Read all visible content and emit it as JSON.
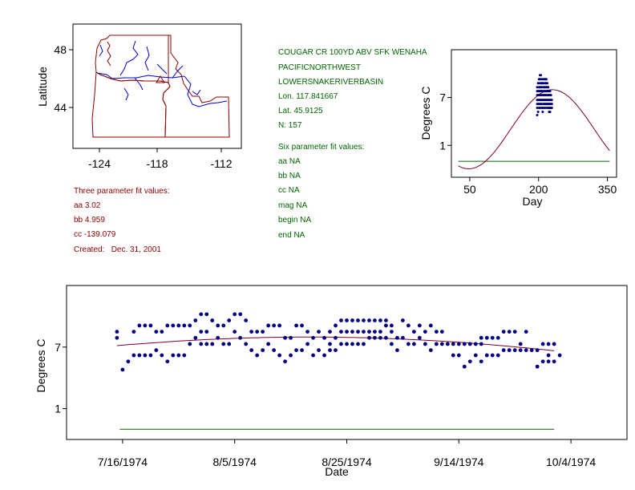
{
  "colors": {
    "point": "#000080",
    "fit": "#800020",
    "baseline": "#006400",
    "site_text": "#006400",
    "three_param_text": "#8b0000",
    "map_states": "#8b0000",
    "map_rivers": "#0000cd"
  },
  "map": {
    "ylabel": "Latitude",
    "yticks": [
      "48",
      "44"
    ],
    "xticks": [
      "-124",
      "-118",
      "-112"
    ],
    "marker_icon": "triangle-site-marker"
  },
  "three_param": {
    "heading": "Three parameter fit values:",
    "aa": "aa 3.02",
    "bb": "bb 4.959",
    "cc": "cc -139.079",
    "created": "Created:   Dec. 31, 2001"
  },
  "site": {
    "name": "COUGAR CR 100YD ABV SFK WENAHA",
    "region": "PACIFICNORTHWEST",
    "basin": "LOWERSNAKERIVERBASIN",
    "lon": "Lon. 117.841667",
    "lat": "Lat. 45.9125",
    "n": "N: 157"
  },
  "six_param": {
    "heading": "Six parameter fit values:",
    "aa": "aa NA",
    "bb": "bb NA",
    "cc": "cc NA",
    "mag": "mag NA",
    "begin": "begin NA",
    "end": "end NA"
  },
  "chart_data": [
    {
      "type": "scatter",
      "name": "seasonal",
      "xlabel": "Day",
      "ylabel": "Degrees C",
      "xlim": [
        10,
        370
      ],
      "ylim": [
        -3,
        13
      ],
      "xticks": [
        50,
        200,
        350
      ],
      "yticks": [
        1,
        7
      ],
      "xtick_labels": [
        "50",
        "200",
        "350"
      ],
      "ytick_labels": [
        "1",
        "7"
      ],
      "fit": {
        "aa": 3.02,
        "bb": 4.959,
        "cc": -139.079,
        "x_start": 25,
        "x_end": 355
      },
      "baseline": {
        "y": -1,
        "x_start": 25,
        "x_end": 355
      },
      "points_by_day": [
        {
          "day": 197,
          "temps": [
            4.8,
            5.7,
            6.2,
            6.7,
            7.3,
            7.8,
            8.3
          ]
        },
        {
          "day": 199,
          "temps": [
            5.2,
            6.2,
            6.7,
            7.3,
            7.8,
            8.8
          ]
        },
        {
          "day": 201,
          "temps": [
            5.7,
            6.2,
            6.7,
            7.3,
            7.8,
            8.3,
            8.8,
            9.3
          ]
        },
        {
          "day": 203,
          "temps": [
            5.7,
            6.2,
            6.7,
            7.3,
            7.8,
            8.3,
            9.3,
            9.8
          ]
        },
        {
          "day": 205,
          "temps": [
            6.2,
            6.7,
            7.3,
            7.8,
            8.3,
            8.8,
            9.8
          ]
        },
        {
          "day": 207,
          "temps": [
            5.7,
            6.2,
            6.7,
            7.3,
            7.8,
            8.3,
            8.8,
            9.3
          ]
        },
        {
          "day": 209,
          "temps": [
            5.2,
            5.7,
            6.7,
            7.3,
            7.8,
            8.8,
            9.3
          ]
        },
        {
          "day": 211,
          "temps": [
            6.2,
            6.7,
            7.3,
            7.8,
            8.3,
            8.8
          ]
        },
        {
          "day": 213,
          "temps": [
            5.7,
            6.2,
            6.7,
            7.3,
            7.8,
            8.3,
            9.3
          ]
        },
        {
          "day": 215,
          "temps": [
            6.2,
            6.7,
            7.3,
            7.8,
            8.3,
            8.8,
            9.3
          ]
        },
        {
          "day": 217,
          "temps": [
            5.7,
            6.2,
            6.7,
            7.3,
            7.8,
            8.3,
            8.8,
            9.3
          ]
        },
        {
          "day": 219,
          "temps": [
            6.2,
            6.7,
            7.3,
            7.8,
            8.3,
            8.8
          ]
        },
        {
          "day": 221,
          "temps": [
            5.7,
            6.2,
            6.7,
            7.3,
            7.8,
            8.3
          ]
        },
        {
          "day": 223,
          "temps": [
            5.2,
            5.7,
            6.2,
            6.7,
            7.3,
            7.8
          ]
        },
        {
          "day": 225,
          "temps": [
            5.2,
            5.7,
            6.2,
            6.7,
            7.3,
            7.8
          ]
        },
        {
          "day": 227,
          "temps": [
            5.7,
            6.2,
            6.7,
            7.3
          ]
        },
        {
          "day": 229,
          "temps": [
            5.7,
            6.2,
            6.7
          ]
        }
      ]
    },
    {
      "type": "scatter",
      "name": "timeseries",
      "xlabel": "Date",
      "ylabel": "Degrees C",
      "x_start_date": "1974-07-16",
      "xlim": [
        -10,
        90
      ],
      "ylim": [
        -2,
        13
      ],
      "xticks": [
        0,
        20,
        40,
        60,
        80
      ],
      "xtick_labels": [
        "7/16/1974",
        "8/5/1974",
        "8/25/1974",
        "9/14/1974",
        "10/4/1974"
      ],
      "yticks": [
        1,
        7
      ],
      "ytick_labels": [
        "1",
        "7"
      ],
      "fit_series": {
        "day_of_year_start": 197,
        "day_of_year_end": 274
      },
      "baseline": {
        "y": -1,
        "x_start": -0.5,
        "x_end": 77
      },
      "points_by_day": [
        {
          "d": -1,
          "temps": [
            8.5,
            7.9
          ]
        },
        {
          "d": 0,
          "temps": [
            4.8
          ]
        },
        {
          "d": 1,
          "temps": [
            5.6
          ]
        },
        {
          "d": 2,
          "temps": [
            6.2,
            8.5
          ]
        },
        {
          "d": 3,
          "temps": [
            6.2,
            9.1
          ]
        },
        {
          "d": 4,
          "temps": [
            6.2,
            9.1
          ]
        },
        {
          "d": 5,
          "temps": [
            6.2,
            9.1
          ]
        },
        {
          "d": 6,
          "temps": [
            6.7,
            8.5
          ]
        },
        {
          "d": 7,
          "temps": [
            6.2,
            8.5
          ]
        },
        {
          "d": 8,
          "temps": [
            5.6,
            9.1
          ]
        },
        {
          "d": 9,
          "temps": [
            6.2,
            9.1
          ]
        },
        {
          "d": 10,
          "temps": [
            6.2,
            9.1
          ]
        },
        {
          "d": 11,
          "temps": [
            6.2,
            9.1
          ]
        },
        {
          "d": 12,
          "temps": [
            7.3,
            9.1
          ]
        },
        {
          "d": 13,
          "temps": [
            7.9,
            9.6
          ]
        },
        {
          "d": 14,
          "temps": [
            7.3,
            8.5,
            10.2
          ]
        },
        {
          "d": 15,
          "temps": [
            7.3,
            8.5,
            10.2
          ]
        },
        {
          "d": 16,
          "temps": [
            7.3,
            9.6
          ]
        },
        {
          "d": 17,
          "temps": [
            7.9,
            9.1
          ]
        },
        {
          "d": 18,
          "temps": [
            7.3,
            9.1
          ]
        },
        {
          "d": 19,
          "temps": [
            7.3,
            9.6
          ]
        },
        {
          "d": 20,
          "temps": [
            8.5,
            10.2
          ]
        },
        {
          "d": 21,
          "temps": [
            7.9,
            10.2
          ]
        },
        {
          "d": 22,
          "temps": [
            7.3,
            9.6
          ]
        },
        {
          "d": 23,
          "temps": [
            6.7,
            8.5
          ]
        },
        {
          "d": 24,
          "temps": [
            6.2,
            8.5
          ]
        },
        {
          "d": 25,
          "temps": [
            6.7,
            8.5
          ]
        },
        {
          "d": 26,
          "temps": [
            7.3,
            9.1
          ]
        },
        {
          "d": 27,
          "temps": [
            6.7,
            9.1
          ]
        },
        {
          "d": 28,
          "temps": [
            6.2,
            9.1
          ]
        },
        {
          "d": 29,
          "temps": [
            5.6,
            7.9
          ]
        },
        {
          "d": 30,
          "temps": [
            6.2,
            7.9
          ]
        },
        {
          "d": 31,
          "temps": [
            6.7,
            9.1
          ]
        },
        {
          "d": 32,
          "temps": [
            6.7,
            9.1
          ]
        },
        {
          "d": 33,
          "temps": [
            7.3,
            8.5
          ]
        },
        {
          "d": 34,
          "temps": [
            6.2,
            7.9
          ]
        },
        {
          "d": 35,
          "temps": [
            6.7,
            8.5
          ]
        },
        {
          "d": 36,
          "temps": [
            6.2,
            7.9
          ]
        },
        {
          "d": 37,
          "temps": [
            6.7,
            7.3,
            8.5
          ]
        },
        {
          "d": 38,
          "temps": [
            6.7,
            7.9,
            9.1
          ]
        },
        {
          "d": 39,
          "temps": [
            7.3,
            8.5,
            9.6
          ]
        },
        {
          "d": 40,
          "temps": [
            7.3,
            8.5,
            9.6
          ]
        },
        {
          "d": 41,
          "temps": [
            7.3,
            8.5,
            9.6
          ]
        },
        {
          "d": 42,
          "temps": [
            7.3,
            8.5,
            9.6
          ]
        },
        {
          "d": 43,
          "temps": [
            7.3,
            8.5,
            9.6
          ]
        },
        {
          "d": 44,
          "temps": [
            7.9,
            8.5,
            9.6
          ]
        },
        {
          "d": 45,
          "temps": [
            7.9,
            8.5,
            9.6
          ]
        },
        {
          "d": 46,
          "temps": [
            7.9,
            8.5,
            9.6
          ]
        },
        {
          "d": 47,
          "temps": [
            7.9,
            9.1,
            9.6
          ]
        },
        {
          "d": 48,
          "temps": [
            7.3,
            8.5,
            9.1
          ]
        },
        {
          "d": 49,
          "temps": [
            6.7,
            7.9
          ]
        },
        {
          "d": 50,
          "temps": [
            7.9,
            9.6
          ]
        },
        {
          "d": 51,
          "temps": [
            7.3,
            9.1
          ]
        },
        {
          "d": 52,
          "temps": [
            7.3,
            8.5
          ]
        },
        {
          "d": 53,
          "temps": [
            7.9,
            9.1
          ]
        },
        {
          "d": 54,
          "temps": [
            7.3,
            8.5
          ]
        },
        {
          "d": 55,
          "temps": [
            6.7,
            9.1
          ]
        },
        {
          "d": 56,
          "temps": [
            7.3,
            8.5
          ]
        },
        {
          "d": 57,
          "temps": [
            7.3,
            8.5
          ]
        },
        {
          "d": 58,
          "temps": [
            7.3
          ]
        },
        {
          "d": 59,
          "temps": [
            6.2,
            7.3
          ]
        },
        {
          "d": 60,
          "temps": [
            6.2,
            7.3
          ]
        },
        {
          "d": 61,
          "temps": [
            5.1,
            7.3
          ]
        },
        {
          "d": 62,
          "temps": [
            5.6,
            7.3
          ]
        },
        {
          "d": 63,
          "temps": [
            6.2,
            7.3
          ]
        },
        {
          "d": 64,
          "temps": [
            5.6,
            7.3,
            7.9
          ]
        },
        {
          "d": 65,
          "temps": [
            6.2,
            7.9
          ]
        },
        {
          "d": 66,
          "temps": [
            6.2,
            7.9
          ]
        },
        {
          "d": 67,
          "temps": [
            6.2,
            7.9
          ]
        },
        {
          "d": 68,
          "temps": [
            6.7,
            8.5
          ]
        },
        {
          "d": 69,
          "temps": [
            6.7,
            8.5
          ]
        },
        {
          "d": 70,
          "temps": [
            6.7,
            8.5
          ]
        },
        {
          "d": 71,
          "temps": [
            6.7,
            7.3
          ]
        },
        {
          "d": 72,
          "temps": [
            6.7,
            8.5
          ]
        },
        {
          "d": 73,
          "temps": [
            6.7
          ]
        },
        {
          "d": 74,
          "temps": [
            5.1,
            6.7
          ]
        },
        {
          "d": 75,
          "temps": [
            5.6,
            7.3
          ]
        },
        {
          "d": 76,
          "temps": [
            5.6,
            6.2,
            7.3
          ]
        },
        {
          "d": 77,
          "temps": [
            5.6,
            7.3
          ]
        },
        {
          "d": 78,
          "temps": [
            6.2
          ]
        }
      ]
    }
  ]
}
